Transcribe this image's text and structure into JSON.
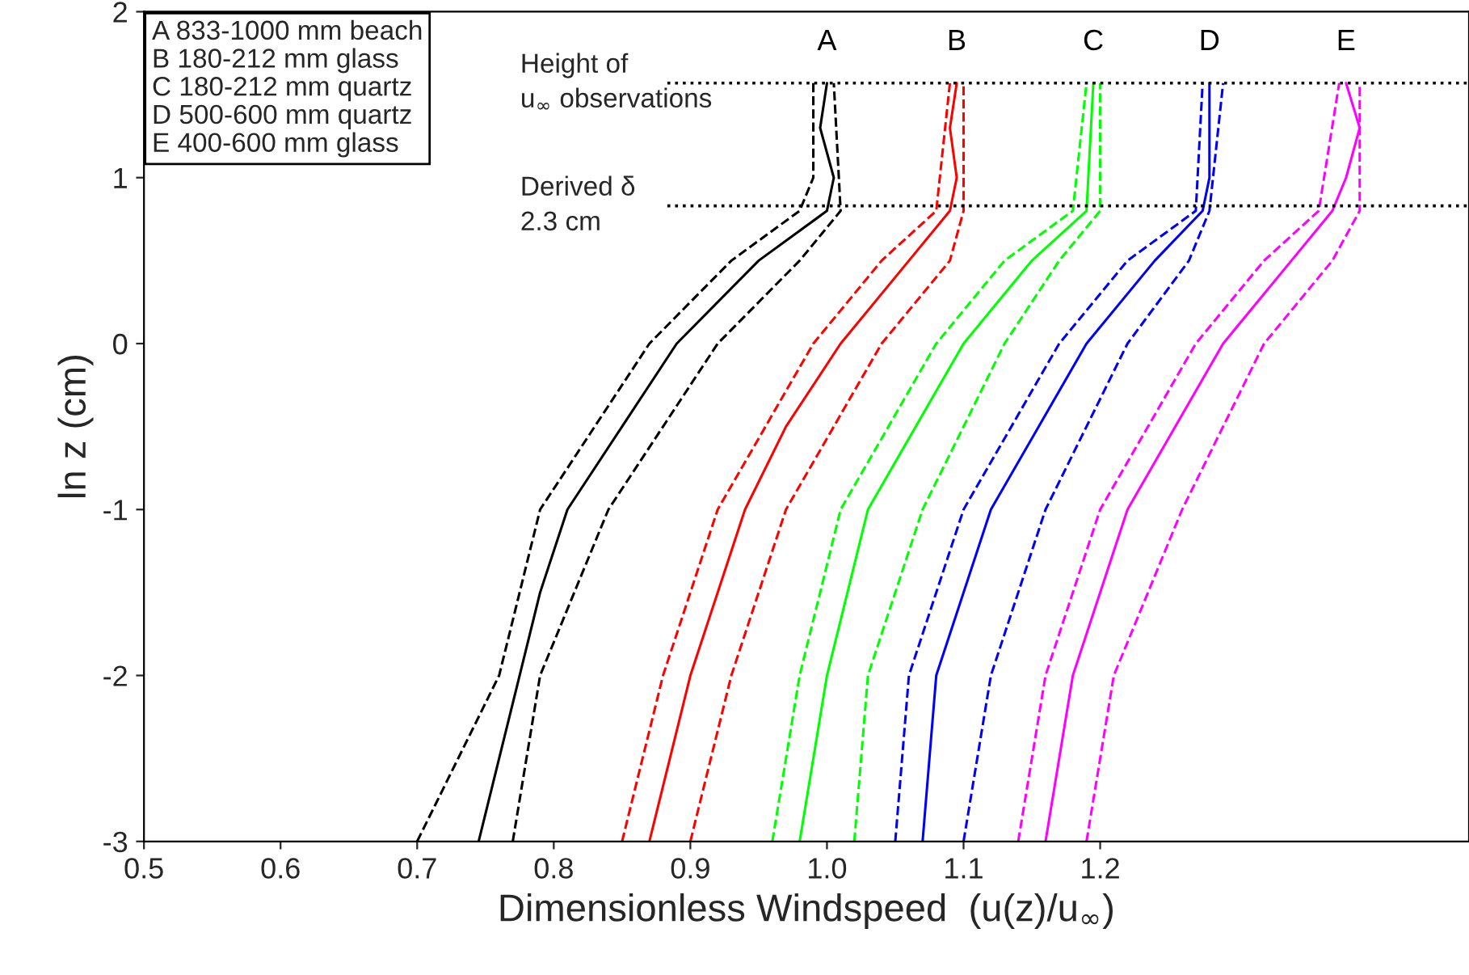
{
  "chart_data": {
    "type": "line",
    "xlabel": "Dimensionless Windspeed  (u(z)/u$_{∞}$)",
    "ylabel": "ln z (cm)",
    "xlim": [
      0.5,
      1.47
    ],
    "xticks": [
      0.5,
      0.6,
      0.7,
      0.8,
      0.9,
      {
        "value": 1,
        "label": "1.0"
      },
      1.1,
      1.2
    ],
    "ylim": [
      -3,
      2
    ],
    "yticks": [
      -3,
      -2,
      -1,
      0,
      1,
      2
    ],
    "grid": false,
    "legend": false,
    "marker": "none",
    "annotations": [
      "A 833-1000 mm beach\nB 180-212 mm glass\nC 180-212 mm quartz\nD 500-600 mm quartz\nE 400-600 mm glass"
    ],
    "ref_lines": [
      {
        "axis": "y",
        "value": 1.57,
        "label": "Height of\nu$_{∞}$ observations",
        "color": "#000000",
        "line_style": "dotted"
      },
      {
        "axis": "y",
        "value": 0.83,
        "label": "Derived δ\n2.3 cm",
        "color": "#000000",
        "line_style": "dotted"
      }
    ],
    "series": [
      {
        "color": "#000000",
        "line_style": "dashed",
        "x": [
          0.7,
          0.76,
          0.79,
          0.87,
          0.93,
          0.98,
          0.99,
          0.99
        ],
        "values": [
          -3,
          -2,
          -1,
          0,
          0.5,
          0.8,
          1.0,
          1.57
        ]
      },
      {
        "name": "A",
        "color": "#000000",
        "line_style": "solid",
        "x": [
          0.745,
          0.76,
          0.775,
          0.79,
          0.81,
          0.85,
          0.89,
          0.95,
          1.0,
          1.005,
          0.995,
          1.0
        ],
        "values": [
          -3,
          -2.5,
          -2,
          -1.5,
          -1,
          -0.5,
          0,
          0.5,
          0.8,
          1.0,
          1.3,
          1.57
        ]
      },
      {
        "color": "#000000",
        "line_style": "dashed",
        "x": [
          0.77,
          0.79,
          0.84,
          0.92,
          0.98,
          1.01,
          1.005
        ],
        "values": [
          -3,
          -2,
          -1,
          0,
          0.5,
          0.8,
          1.57
        ]
      },
      {
        "color": "#ff0000",
        "line_style": "dashed",
        "x": [
          0.85,
          0.88,
          0.92,
          0.99,
          1.04,
          1.08,
          1.09
        ],
        "values": [
          -3,
          -2,
          -1,
          0,
          0.5,
          0.8,
          1.57
        ]
      },
      {
        "name": "B",
        "color": "#ff0000",
        "line_style": "solid",
        "x": [
          0.87,
          0.9,
          0.94,
          0.97,
          1.01,
          1.06,
          1.09,
          1.095,
          1.09,
          1.095
        ],
        "values": [
          -3,
          -2,
          -1,
          -0.5,
          0,
          0.5,
          0.8,
          1.0,
          1.3,
          1.57
        ]
      },
      {
        "color": "#ff0000",
        "line_style": "dashed",
        "x": [
          0.9,
          0.93,
          0.97,
          1.04,
          1.09,
          1.1,
          1.1
        ],
        "values": [
          -3,
          -2,
          -1,
          0,
          0.5,
          0.8,
          1.57
        ]
      },
      {
        "color": "#00ff00",
        "line_style": "dashed",
        "x": [
          0.96,
          0.98,
          1.01,
          1.08,
          1.13,
          1.18,
          1.19
        ],
        "values": [
          -3,
          -2,
          -1,
          0,
          0.5,
          0.8,
          1.57
        ]
      },
      {
        "name": "C",
        "color": "#00ff00",
        "line_style": "solid",
        "x": [
          0.98,
          1.0,
          1.03,
          1.1,
          1.15,
          1.19,
          1.195
        ],
        "values": [
          -3,
          -2,
          -1,
          0,
          0.5,
          0.8,
          1.57
        ]
      },
      {
        "color": "#00ff00",
        "line_style": "dashed",
        "x": [
          1.02,
          1.03,
          1.07,
          1.13,
          1.17,
          1.2,
          1.2
        ],
        "values": [
          -3,
          -2,
          -1,
          0,
          0.5,
          0.8,
          1.57
        ]
      },
      {
        "color": "#0000ff",
        "line_style": "dashed",
        "x": [
          1.05,
          1.06,
          1.1,
          1.17,
          1.22,
          1.27,
          1.275
        ],
        "values": [
          -3,
          -2,
          -1,
          0,
          0.5,
          0.8,
          1.57
        ]
      },
      {
        "name": "D",
        "color": "#0000ff",
        "line_style": "solid",
        "x": [
          1.07,
          1.08,
          1.12,
          1.19,
          1.24,
          1.275,
          1.28,
          1.28
        ],
        "values": [
          -3,
          -2,
          -1,
          0,
          0.5,
          0.8,
          1.0,
          1.57
        ]
      },
      {
        "color": "#0000ff",
        "line_style": "dashed",
        "x": [
          1.1,
          1.12,
          1.16,
          1.22,
          1.265,
          1.28,
          1.29
        ],
        "values": [
          -3,
          -2,
          -1,
          0,
          0.5,
          0.8,
          1.57
        ]
      },
      {
        "color": "#ff00ff",
        "line_style": "dashed",
        "x": [
          1.14,
          1.16,
          1.2,
          1.27,
          1.32,
          1.36,
          1.375
        ],
        "values": [
          -3,
          -2,
          -1,
          0,
          0.5,
          0.8,
          1.57
        ]
      },
      {
        "name": "E",
        "color": "#ff00ff",
        "line_style": "solid",
        "x": [
          1.16,
          1.18,
          1.22,
          1.29,
          1.34,
          1.37,
          1.38,
          1.39,
          1.38
        ],
        "values": [
          -3,
          -2,
          -1,
          0,
          0.5,
          0.8,
          1.0,
          1.3,
          1.57
        ]
      },
      {
        "color": "#ff00ff",
        "line_style": "dashed",
        "x": [
          1.19,
          1.21,
          1.26,
          1.32,
          1.37,
          1.39,
          1.39
        ],
        "values": [
          -3,
          -2,
          -1,
          0,
          0.5,
          0.8,
          1.57
        ]
      }
    ]
  }
}
